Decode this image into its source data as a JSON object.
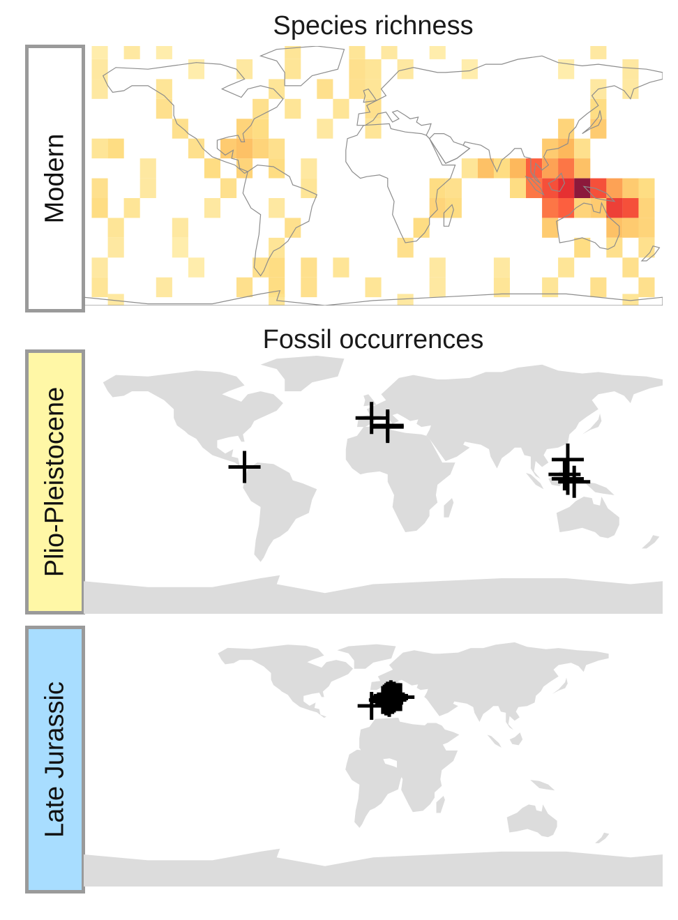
{
  "titles": {
    "richness": "Species richness",
    "fossils": "Fossil occurrences"
  },
  "panels": {
    "modern": {
      "label": "Modern",
      "fill": "#ffffff"
    },
    "plio": {
      "label": "Plio-Pleistocene",
      "fill": "#fff7a6"
    },
    "jurassic": {
      "label": "Late Jurassic",
      "fill": "#a8ddff"
    }
  },
  "colors": {
    "strip_border": "#9a9a9a",
    "land": "#dcdcdc",
    "coastline": "#8c8c8c",
    "marker": "#000000",
    "heat_low": "#fff8c4",
    "heat_mid": "#fdb04a",
    "heat_high": "#e31a1c",
    "heat_max": "#800026"
  },
  "chart_data": [
    {
      "type": "heatmap",
      "title": "Species richness",
      "panel": "Modern",
      "cells_note_values_relative_0_to_1": true,
      "cells": [
        {
          "lon": -170,
          "lat": 82,
          "v": 0.15
        },
        {
          "lon": -150,
          "lat": 82,
          "v": 0.2
        },
        {
          "lon": -130,
          "lat": 82,
          "v": 0.15
        },
        {
          "lon": -50,
          "lat": 82,
          "v": 0.25
        },
        {
          "lon": -10,
          "lat": 82,
          "v": 0.25
        },
        {
          "lon": 10,
          "lat": 82,
          "v": 0.2
        },
        {
          "lon": 40,
          "lat": 82,
          "v": 0.15
        },
        {
          "lon": 140,
          "lat": 82,
          "v": 0.2
        },
        {
          "lon": -170,
          "lat": 70,
          "v": 0.2
        },
        {
          "lon": -110,
          "lat": 70,
          "v": 0.15
        },
        {
          "lon": -80,
          "lat": 70,
          "v": 0.2
        },
        {
          "lon": -50,
          "lat": 70,
          "v": 0.25
        },
        {
          "lon": -10,
          "lat": 70,
          "v": 0.3
        },
        {
          "lon": 0,
          "lat": 70,
          "v": 0.25
        },
        {
          "lon": 20,
          "lat": 70,
          "v": 0.2
        },
        {
          "lon": 60,
          "lat": 70,
          "v": 0.15
        },
        {
          "lon": 120,
          "lat": 70,
          "v": 0.15
        },
        {
          "lon": 160,
          "lat": 70,
          "v": 0.2
        },
        {
          "lon": -170,
          "lat": 58,
          "v": 0.2
        },
        {
          "lon": -130,
          "lat": 58,
          "v": 0.25
        },
        {
          "lon": -60,
          "lat": 58,
          "v": 0.25
        },
        {
          "lon": -30,
          "lat": 58,
          "v": 0.3
        },
        {
          "lon": -10,
          "lat": 58,
          "v": 0.3
        },
        {
          "lon": 0,
          "lat": 58,
          "v": 0.25
        },
        {
          "lon": 140,
          "lat": 58,
          "v": 0.2
        },
        {
          "lon": 160,
          "lat": 58,
          "v": 0.2
        },
        {
          "lon": -130,
          "lat": 46,
          "v": 0.3
        },
        {
          "lon": -70,
          "lat": 46,
          "v": 0.3
        },
        {
          "lon": -50,
          "lat": 46,
          "v": 0.25
        },
        {
          "lon": -20,
          "lat": 46,
          "v": 0.25
        },
        {
          "lon": 0,
          "lat": 46,
          "v": 0.3
        },
        {
          "lon": 140,
          "lat": 46,
          "v": 0.35
        },
        {
          "lon": -120,
          "lat": 34,
          "v": 0.3
        },
        {
          "lon": -80,
          "lat": 34,
          "v": 0.4
        },
        {
          "lon": -70,
          "lat": 34,
          "v": 0.35
        },
        {
          "lon": -30,
          "lat": 34,
          "v": 0.2
        },
        {
          "lon": 0,
          "lat": 34,
          "v": 0.25
        },
        {
          "lon": 120,
          "lat": 34,
          "v": 0.4
        },
        {
          "lon": 140,
          "lat": 34,
          "v": 0.45
        },
        {
          "lon": -170,
          "lat": 22,
          "v": 0.25
        },
        {
          "lon": -160,
          "lat": 22,
          "v": 0.35
        },
        {
          "lon": -110,
          "lat": 22,
          "v": 0.3
        },
        {
          "lon": -90,
          "lat": 22,
          "v": 0.45
        },
        {
          "lon": -80,
          "lat": 22,
          "v": 0.5
        },
        {
          "lon": -70,
          "lat": 22,
          "v": 0.4
        },
        {
          "lon": -60,
          "lat": 22,
          "v": 0.3
        },
        {
          "lon": 110,
          "lat": 22,
          "v": 0.45
        },
        {
          "lon": 120,
          "lat": 22,
          "v": 0.55
        },
        {
          "lon": 130,
          "lat": 22,
          "v": 0.3
        },
        {
          "lon": -140,
          "lat": 10,
          "v": 0.2
        },
        {
          "lon": -100,
          "lat": 10,
          "v": 0.35
        },
        {
          "lon": -80,
          "lat": 10,
          "v": 0.4
        },
        {
          "lon": -60,
          "lat": 10,
          "v": 0.35
        },
        {
          "lon": -40,
          "lat": 10,
          "v": 0.2
        },
        {
          "lon": 60,
          "lat": 10,
          "v": 0.25
        },
        {
          "lon": 70,
          "lat": 10,
          "v": 0.5
        },
        {
          "lon": 80,
          "lat": 10,
          "v": 0.35
        },
        {
          "lon": 90,
          "lat": 10,
          "v": 0.55
        },
        {
          "lon": 100,
          "lat": 10,
          "v": 0.75
        },
        {
          "lon": 110,
          "lat": 10,
          "v": 0.6
        },
        {
          "lon": 120,
          "lat": 10,
          "v": 0.7
        },
        {
          "lon": 130,
          "lat": 10,
          "v": 0.5
        },
        {
          "lon": -170,
          "lat": -2,
          "v": 0.3
        },
        {
          "lon": -140,
          "lat": -2,
          "v": 0.2
        },
        {
          "lon": -90,
          "lat": -2,
          "v": 0.3
        },
        {
          "lon": -40,
          "lat": -2,
          "v": 0.25
        },
        {
          "lon": 40,
          "lat": -2,
          "v": 0.35
        },
        {
          "lon": 50,
          "lat": -2,
          "v": 0.3
        },
        {
          "lon": 90,
          "lat": -2,
          "v": 0.35
        },
        {
          "lon": 100,
          "lat": -2,
          "v": 0.7
        },
        {
          "lon": 110,
          "lat": -2,
          "v": 0.8
        },
        {
          "lon": 120,
          "lat": -2,
          "v": 0.9
        },
        {
          "lon": 130,
          "lat": -2,
          "v": 1.0
        },
        {
          "lon": 140,
          "lat": -2,
          "v": 0.8
        },
        {
          "lon": 150,
          "lat": -2,
          "v": 0.6
        },
        {
          "lon": 160,
          "lat": -2,
          "v": 0.45
        },
        {
          "lon": 170,
          "lat": -2,
          "v": 0.35
        },
        {
          "lon": -170,
          "lat": -14,
          "v": 0.35
        },
        {
          "lon": -150,
          "lat": -14,
          "v": 0.25
        },
        {
          "lon": -100,
          "lat": -14,
          "v": 0.2
        },
        {
          "lon": -60,
          "lat": -14,
          "v": 0.2
        },
        {
          "lon": 40,
          "lat": -14,
          "v": 0.4
        },
        {
          "lon": 50,
          "lat": -14,
          "v": 0.35
        },
        {
          "lon": 110,
          "lat": -14,
          "v": 0.7
        },
        {
          "lon": 120,
          "lat": -14,
          "v": 0.75
        },
        {
          "lon": 130,
          "lat": -14,
          "v": 0.4
        },
        {
          "lon": 140,
          "lat": -14,
          "v": 0.45
        },
        {
          "lon": 150,
          "lat": -14,
          "v": 0.85
        },
        {
          "lon": 160,
          "lat": -14,
          "v": 0.8
        },
        {
          "lon": 170,
          "lat": -14,
          "v": 0.4
        },
        {
          "lon": -160,
          "lat": -26,
          "v": 0.25
        },
        {
          "lon": -120,
          "lat": -26,
          "v": 0.2
        },
        {
          "lon": -50,
          "lat": -26,
          "v": 0.3
        },
        {
          "lon": 30,
          "lat": -26,
          "v": 0.35
        },
        {
          "lon": 110,
          "lat": -26,
          "v": 0.45
        },
        {
          "lon": 150,
          "lat": -26,
          "v": 0.5
        },
        {
          "lon": 160,
          "lat": -26,
          "v": 0.45
        },
        {
          "lon": 170,
          "lat": -26,
          "v": 0.4
        },
        {
          "lon": -160,
          "lat": -38,
          "v": 0.2
        },
        {
          "lon": -120,
          "lat": -38,
          "v": 0.15
        },
        {
          "lon": -60,
          "lat": -38,
          "v": 0.25
        },
        {
          "lon": 20,
          "lat": -38,
          "v": 0.3
        },
        {
          "lon": 130,
          "lat": -38,
          "v": 0.35
        },
        {
          "lon": 150,
          "lat": -38,
          "v": 0.3
        },
        {
          "lon": 170,
          "lat": -38,
          "v": 0.3
        },
        {
          "lon": -170,
          "lat": -50,
          "v": 0.2
        },
        {
          "lon": -110,
          "lat": -50,
          "v": 0.15
        },
        {
          "lon": -70,
          "lat": -50,
          "v": 0.3
        },
        {
          "lon": -60,
          "lat": -50,
          "v": 0.35
        },
        {
          "lon": -40,
          "lat": -50,
          "v": 0.3
        },
        {
          "lon": -20,
          "lat": -50,
          "v": 0.25
        },
        {
          "lon": 40,
          "lat": -50,
          "v": 0.2
        },
        {
          "lon": 80,
          "lat": -50,
          "v": 0.2
        },
        {
          "lon": 120,
          "lat": -50,
          "v": 0.25
        },
        {
          "lon": 160,
          "lat": -50,
          "v": 0.3
        },
        {
          "lon": -170,
          "lat": -62,
          "v": 0.25
        },
        {
          "lon": -130,
          "lat": -62,
          "v": 0.2
        },
        {
          "lon": -80,
          "lat": -62,
          "v": 0.3
        },
        {
          "lon": -60,
          "lat": -62,
          "v": 0.35
        },
        {
          "lon": -40,
          "lat": -62,
          "v": 0.3
        },
        {
          "lon": 0,
          "lat": -62,
          "v": 0.25
        },
        {
          "lon": 40,
          "lat": -62,
          "v": 0.2
        },
        {
          "lon": 80,
          "lat": -62,
          "v": 0.25
        },
        {
          "lon": 110,
          "lat": -62,
          "v": 0.25
        },
        {
          "lon": 140,
          "lat": -62,
          "v": 0.3
        },
        {
          "lon": 170,
          "lat": -62,
          "v": 0.3
        },
        {
          "lon": -160,
          "lat": -72,
          "v": 0.2
        },
        {
          "lon": -60,
          "lat": -72,
          "v": 0.25
        },
        {
          "lon": 20,
          "lat": -72,
          "v": 0.2
        },
        {
          "lon": 160,
          "lat": -72,
          "v": 0.25
        }
      ]
    },
    {
      "type": "scatter",
      "title": "Fossil occurrences",
      "panel": "Plio-Pleistocene",
      "marker": "+",
      "points": [
        {
          "lon": -80,
          "lat": 9
        },
        {
          "lon": -1,
          "lat": 42
        },
        {
          "lon": 9,
          "lat": 37
        },
        {
          "lon": 9,
          "lat": 36
        },
        {
          "lon": 121,
          "lat": 14
        },
        {
          "lon": 119,
          "lat": 4
        },
        {
          "lon": 121,
          "lat": 1
        },
        {
          "lon": 125,
          "lat": -1
        }
      ]
    },
    {
      "type": "scatter",
      "panel": "Late Jurassic",
      "marker": "+",
      "points": [
        {
          "lon": -1,
          "lat": 34
        },
        {
          "lon": 6,
          "lat": 38
        },
        {
          "lon": 7,
          "lat": 39
        },
        {
          "lon": 8,
          "lat": 40
        },
        {
          "lon": 8,
          "lat": 37
        },
        {
          "lon": 9,
          "lat": 41
        },
        {
          "lon": 9,
          "lat": 38
        },
        {
          "lon": 10,
          "lat": 40
        },
        {
          "lon": 10,
          "lat": 36
        },
        {
          "lon": 11,
          "lat": 39
        },
        {
          "lon": 11,
          "lat": 42
        },
        {
          "lon": 12,
          "lat": 38
        },
        {
          "lon": 12,
          "lat": 40
        },
        {
          "lon": 13,
          "lat": 41
        },
        {
          "lon": 13,
          "lat": 39
        },
        {
          "lon": 14,
          "lat": 40
        },
        {
          "lon": 15,
          "lat": 40
        },
        {
          "lon": 16,
          "lat": 40
        },
        {
          "lon": 17,
          "lat": 40
        }
      ]
    }
  ]
}
